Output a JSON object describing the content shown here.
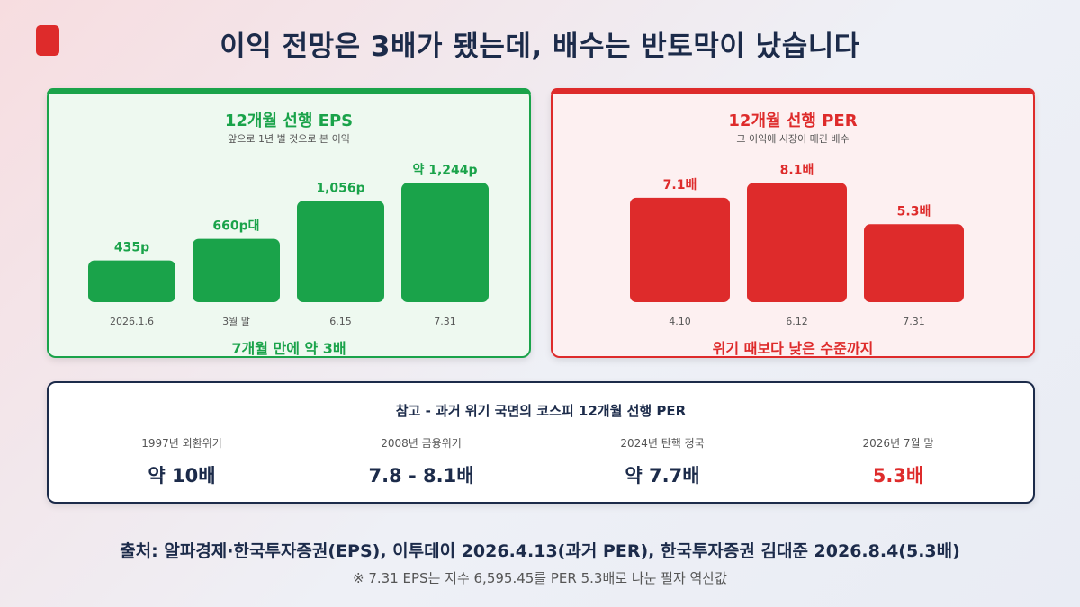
{
  "title": "이익 전망은 3배가 됐는데, 배수는 반토막이 났습니다",
  "colors": {
    "green": "#1aa34a",
    "red": "#de2b2b",
    "navy": "#1c2b4a"
  },
  "chart_data": [
    {
      "type": "bar",
      "title": "12개월 선행 EPS",
      "subtitle": "앞으로 1년 벌 것으로 본 이익",
      "categories": [
        "2026.1.6",
        "3월 말",
        "6.15",
        "7.31"
      ],
      "values": [
        435,
        660,
        1056,
        1244
      ],
      "data_labels": [
        "435p",
        "660p대",
        "1,056p",
        "약 1,244p"
      ],
      "ylim": [
        0,
        1350
      ],
      "footnote": "7개월 만에 약 3배",
      "color": "#1aa34a"
    },
    {
      "type": "bar",
      "title": "12개월 선행 PER",
      "subtitle": "그 이익에 시장이 매긴 배수",
      "categories": [
        "4.10",
        "6.12",
        "7.31"
      ],
      "values": [
        7.1,
        8.1,
        5.3
      ],
      "data_labels": [
        "7.1배",
        "8.1배",
        "5.3배"
      ],
      "ylim": [
        0,
        8.8
      ],
      "footnote": "위기 때보다 낮은 수준까지",
      "color": "#de2b2b"
    }
  ],
  "reference": {
    "title": "참고 - 과거 위기 국면의 코스피 12개월 선행 PER",
    "items": [
      {
        "period": "1997년 외환위기",
        "value": "약 10배"
      },
      {
        "period": "2008년 금융위기",
        "value": "7.8 - 8.1배"
      },
      {
        "period": "2024년 탄핵 정국",
        "value": "약 7.7배"
      },
      {
        "period": "2026년 7월 말",
        "value": "5.3배"
      }
    ]
  },
  "source": "출처: 알파경제·한국투자증권(EPS), 이투데이 2026.4.13(과거 PER), 한국투자증권 김대준 2026.8.4(5.3배)",
  "note": "※ 7.31 EPS는 지수 6,595.45를 PER 5.3배로 나눈 필자 역산값"
}
